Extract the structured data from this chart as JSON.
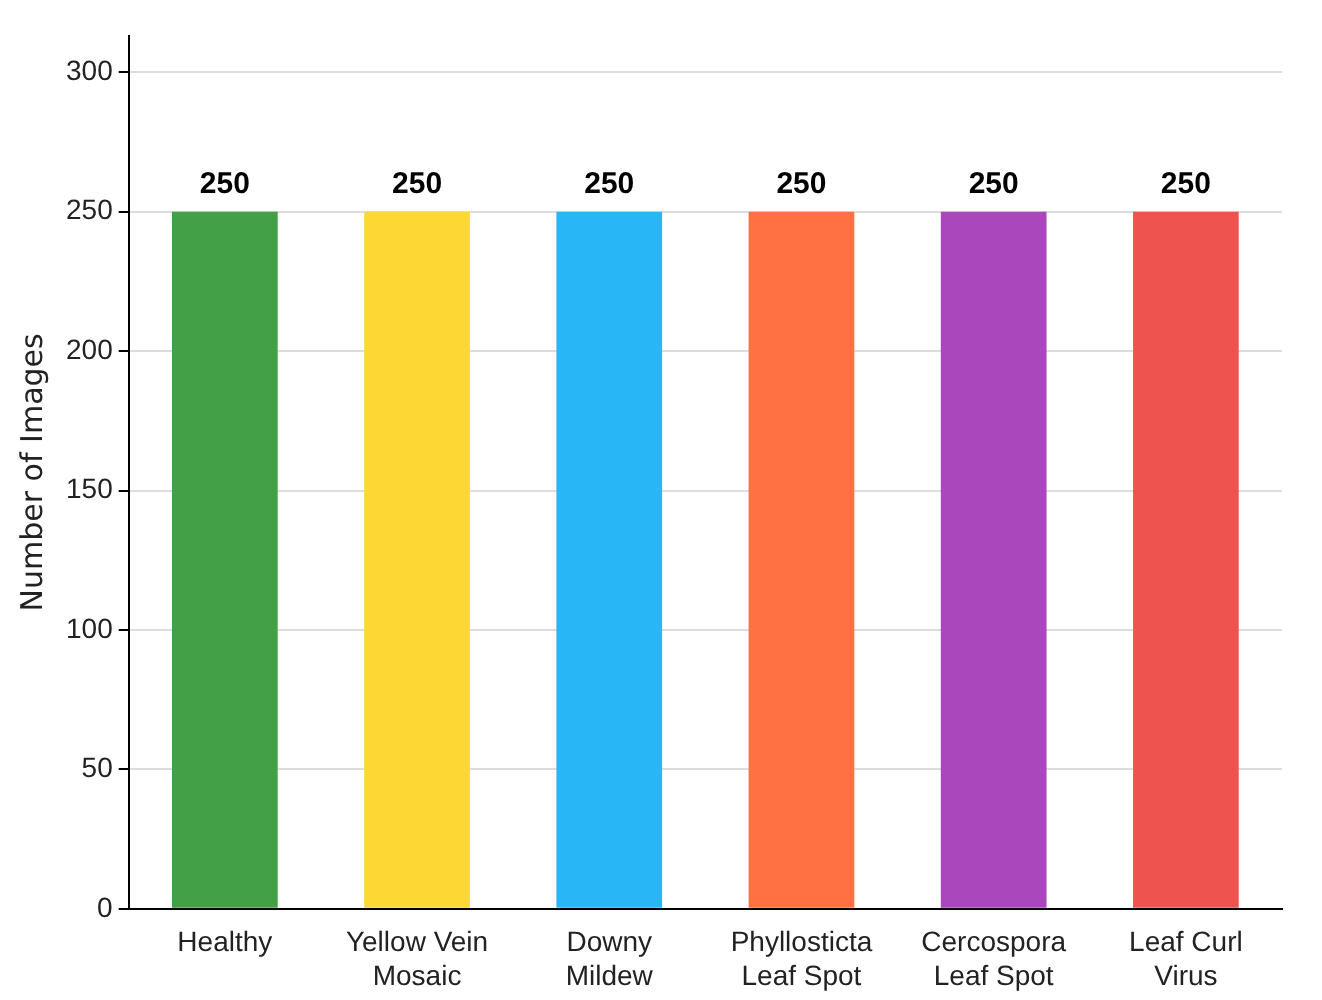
{
  "chart_data": {
    "type": "bar",
    "ylabel": "Number of Images",
    "categories": [
      "Healthy",
      "Yellow Vein Mosaic",
      "Downy Mildew",
      "Phyllosticta Leaf Spot",
      "Cercospora Leaf Spot",
      "Leaf Curl Virus"
    ],
    "values": [
      250,
      250,
      250,
      250,
      250,
      250
    ],
    "colors": [
      "#43a047",
      "#fdd835",
      "#29b6f6",
      "#ff7043",
      "#ab47bc",
      "#ef5350"
    ],
    "ylim": [
      0,
      313
    ],
    "yticks": [
      0,
      50,
      100,
      150,
      200,
      250,
      300
    ],
    "grid": "y",
    "data_labels": true
  }
}
